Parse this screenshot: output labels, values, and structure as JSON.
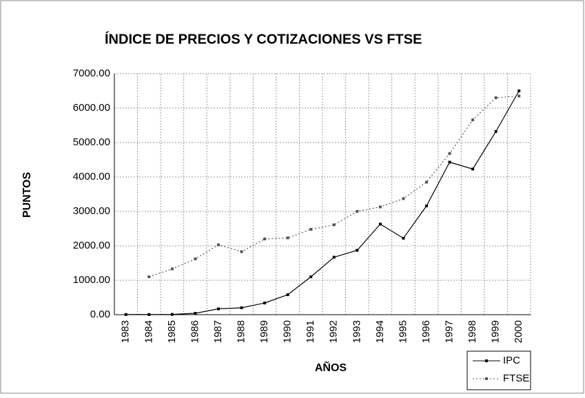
{
  "chart_data": {
    "type": "line",
    "title": "ÍNDICE DE PRECIOS Y COTIZACIONES VS FTSE",
    "xlabel": "AÑOS",
    "ylabel": "PUNTOS",
    "categories": [
      "1983",
      "1984",
      "1985",
      "1986",
      "1987",
      "1988",
      "1989",
      "1990",
      "1991",
      "1992",
      "1993",
      "1994",
      "1995",
      "1996",
      "1997",
      "1998",
      "1999",
      "2000"
    ],
    "series": [
      {
        "name": "IPC",
        "color": "#000000",
        "style": "solid",
        "values": [
          5,
          5,
          8,
          40,
          170,
          200,
          340,
          580,
          1100,
          1670,
          1870,
          2630,
          2220,
          3160,
          4430,
          4230,
          5320,
          6500
        ]
      },
      {
        "name": "FTSE",
        "color": "#555555",
        "style": "dotted",
        "values": [
          null,
          1100,
          1330,
          1620,
          2030,
          1830,
          2200,
          2230,
          2480,
          2610,
          3000,
          3130,
          3370,
          3850,
          4680,
          5660,
          6300,
          6350
        ]
      }
    ],
    "ylim": [
      0,
      7000
    ],
    "yticks": [
      {
        "value": 0,
        "label": "0.00"
      },
      {
        "value": 1000,
        "label": "1000.00"
      },
      {
        "value": 2000,
        "label": "2000.00"
      },
      {
        "value": 3000,
        "label": "3000.00"
      },
      {
        "value": 4000,
        "label": "4000.00"
      },
      {
        "value": 5000,
        "label": "5000.00"
      },
      {
        "value": 6000,
        "label": "6000.00"
      },
      {
        "value": 7000,
        "label": "7000.00"
      }
    ],
    "grid": true,
    "legend": "lower right"
  }
}
